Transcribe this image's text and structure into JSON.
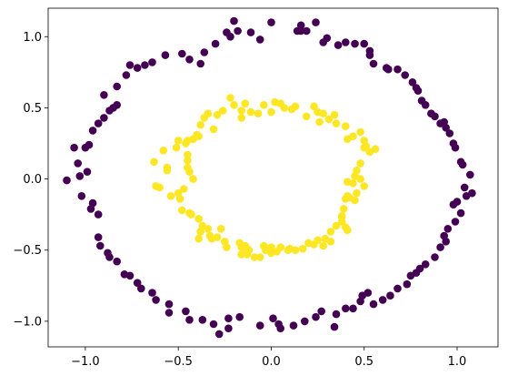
{
  "chart_data": {
    "type": "scatter",
    "title": "",
    "xlabel": "",
    "ylabel": "",
    "xlim": [
      -1.2,
      1.22
    ],
    "ylim": [
      -1.18,
      1.2
    ],
    "grid": false,
    "legend": "none",
    "colors": {
      "outer": "#440154",
      "inner": "#fde725"
    },
    "x_ticks": [
      {
        "value": -1.0,
        "label": "−1.0"
      },
      {
        "value": -0.5,
        "label": "−0.5"
      },
      {
        "value": 0.0,
        "label": "0.0"
      },
      {
        "value": 0.5,
        "label": "0.5"
      },
      {
        "value": 1.0,
        "label": "1.0"
      }
    ],
    "y_ticks": [
      {
        "value": -1.0,
        "label": "−1.0"
      },
      {
        "value": -0.5,
        "label": "−0.5"
      },
      {
        "value": 0.0,
        "label": "0.0"
      },
      {
        "value": 0.5,
        "label": "0.5"
      },
      {
        "value": 1.0,
        "label": "1.0"
      }
    ],
    "series": [
      {
        "class": "outer",
        "points": [
          [
            -1.1,
            -0.01
          ],
          [
            -1.06,
            0.22
          ],
          [
            -1.04,
            0.11
          ],
          [
            -1.03,
            0.02
          ],
          [
            -0.99,
            0.05
          ],
          [
            -1.0,
            0.22
          ],
          [
            -0.98,
            0.24
          ],
          [
            -1.02,
            -0.12
          ],
          [
            -0.97,
            -0.21
          ],
          [
            -0.96,
            -0.17
          ],
          [
            -0.93,
            -0.25
          ],
          [
            -0.96,
            0.34
          ],
          [
            -0.93,
            0.39
          ],
          [
            -0.9,
            0.43
          ],
          [
            -0.87,
            0.48
          ],
          [
            -0.85,
            0.5
          ],
          [
            -0.83,
            0.52
          ],
          [
            -0.9,
            0.59
          ],
          [
            -0.83,
            0.65
          ],
          [
            -0.78,
            0.73
          ],
          [
            -0.76,
            0.8
          ],
          [
            -0.72,
            0.78
          ],
          [
            -0.68,
            0.8
          ],
          [
            -0.64,
            0.82
          ],
          [
            -0.57,
            0.87
          ],
          [
            -0.48,
            0.88
          ],
          [
            -0.44,
            0.84
          ],
          [
            -0.38,
            0.81
          ],
          [
            -0.36,
            0.89
          ],
          [
            -0.3,
            0.95
          ],
          [
            -0.22,
            1.0
          ],
          [
            -0.24,
            1.03
          ],
          [
            -0.18,
            1.04
          ],
          [
            -0.2,
            1.11
          ],
          [
            -0.11,
            1.03
          ],
          [
            -0.06,
            0.98
          ],
          [
            -0.0,
            1.1
          ],
          [
            0.14,
            1.04
          ],
          [
            0.16,
            1.04
          ],
          [
            0.19,
            1.04
          ],
          [
            0.16,
            1.08
          ],
          [
            0.24,
            1.1
          ],
          [
            0.28,
            0.96
          ],
          [
            0.3,
            0.99
          ],
          [
            0.36,
            0.94
          ],
          [
            0.4,
            0.96
          ],
          [
            0.45,
            0.95
          ],
          [
            0.5,
            0.95
          ],
          [
            0.53,
            0.9
          ],
          [
            0.53,
            0.87
          ],
          [
            0.55,
            0.81
          ],
          [
            0.62,
            0.78
          ],
          [
            0.63,
            0.77
          ],
          [
            0.68,
            0.77
          ],
          [
            0.72,
            0.73
          ],
          [
            0.76,
            0.68
          ],
          [
            0.78,
            0.64
          ],
          [
            0.79,
            0.62
          ],
          [
            0.81,
            0.55
          ],
          [
            0.83,
            0.52
          ],
          [
            0.86,
            0.46
          ],
          [
            0.88,
            0.44
          ],
          [
            0.91,
            0.39
          ],
          [
            0.93,
            0.4
          ],
          [
            0.94,
            0.36
          ],
          [
            0.96,
            0.32
          ],
          [
            0.98,
            0.25
          ],
          [
            0.99,
            0.22
          ],
          [
            1.02,
            0.12
          ],
          [
            1.03,
            0.1
          ],
          [
            1.07,
            0.03
          ],
          [
            1.04,
            -0.06
          ],
          [
            1.05,
            -0.12
          ],
          [
            1.08,
            -0.1
          ],
          [
            1.0,
            -0.16
          ],
          [
            0.98,
            -0.18
          ],
          [
            1.02,
            -0.24
          ],
          [
            0.99,
            -0.3
          ],
          [
            0.95,
            -0.35
          ],
          [
            0.93,
            -0.4
          ],
          [
            0.94,
            -0.44
          ],
          [
            0.91,
            -0.48
          ],
          [
            0.88,
            -0.55
          ],
          [
            0.83,
            -0.6
          ],
          [
            0.8,
            -0.63
          ],
          [
            0.78,
            -0.66
          ],
          [
            0.75,
            -0.68
          ],
          [
            0.73,
            -0.74
          ],
          [
            0.68,
            -0.77
          ],
          [
            0.64,
            -0.82
          ],
          [
            0.6,
            -0.85
          ],
          [
            0.55,
            -0.88
          ],
          [
            0.52,
            -0.8
          ],
          [
            0.49,
            -0.82
          ],
          [
            0.48,
            -0.86
          ],
          [
            0.44,
            -0.91
          ],
          [
            0.4,
            -0.91
          ],
          [
            0.35,
            -0.95
          ],
          [
            0.34,
            -1.04
          ],
          [
            0.27,
            -0.93
          ],
          [
            0.24,
            -0.97
          ],
          [
            0.18,
            -1.0
          ],
          [
            0.12,
            -1.03
          ],
          [
            0.05,
            -1.05
          ],
          [
            0.04,
            -1.02
          ],
          [
            0.01,
            -0.98
          ],
          [
            -0.06,
            -1.03
          ],
          [
            -0.17,
            -0.97
          ],
          [
            -0.23,
            -0.98
          ],
          [
            -0.23,
            -1.05
          ],
          [
            -0.28,
            -1.09
          ],
          [
            -0.31,
            -1.02
          ],
          [
            -0.37,
            -0.99
          ],
          [
            -0.44,
            -0.99
          ],
          [
            -0.46,
            -0.93
          ],
          [
            -0.55,
            -0.88
          ],
          [
            -0.55,
            -0.94
          ],
          [
            -0.62,
            -0.85
          ],
          [
            -0.64,
            -0.8
          ],
          [
            -0.7,
            -0.77
          ],
          [
            -0.72,
            -0.73
          ],
          [
            -0.76,
            -0.68
          ],
          [
            -0.79,
            -0.67
          ],
          [
            -0.83,
            -0.58
          ],
          [
            -0.87,
            -0.55
          ],
          [
            -0.92,
            -0.47
          ],
          [
            -0.93,
            -0.41
          ],
          [
            -0.88,
            -0.52
          ]
        ]
      },
      {
        "class": "inner",
        "points": [
          [
            -0.22,
            0.57
          ],
          [
            -0.14,
            0.53
          ],
          [
            -0.11,
            0.47
          ],
          [
            -0.16,
            0.48
          ],
          [
            -0.2,
            0.52
          ],
          [
            -0.26,
            0.48
          ],
          [
            -0.29,
            0.45
          ],
          [
            -0.34,
            0.46
          ],
          [
            -0.36,
            0.43
          ],
          [
            -0.38,
            0.38
          ],
          [
            -0.4,
            0.31
          ],
          [
            -0.42,
            0.28
          ],
          [
            -0.46,
            0.25
          ],
          [
            -0.5,
            0.27
          ],
          [
            -0.51,
            0.22
          ],
          [
            -0.58,
            0.2
          ],
          [
            -0.63,
            0.12
          ],
          [
            -0.56,
            0.06
          ],
          [
            -0.56,
            0.08
          ],
          [
            -0.45,
            0.08
          ],
          [
            -0.45,
            0.17
          ],
          [
            -0.45,
            0.13
          ],
          [
            -0.44,
            0.05
          ],
          [
            -0.42,
            0.0
          ],
          [
            -0.47,
            -0.07
          ],
          [
            -0.5,
            -0.1
          ],
          [
            -0.54,
            -0.12
          ],
          [
            -0.62,
            -0.05
          ],
          [
            -0.6,
            -0.06
          ],
          [
            -0.49,
            -0.14
          ],
          [
            -0.48,
            -0.22
          ],
          [
            -0.44,
            -0.24
          ],
          [
            -0.43,
            -0.25
          ],
          [
            -0.39,
            -0.28
          ],
          [
            -0.37,
            -0.33
          ],
          [
            -0.34,
            -0.35
          ],
          [
            -0.33,
            -0.4
          ],
          [
            -0.32,
            -0.42
          ],
          [
            -0.29,
            -0.41
          ],
          [
            -0.27,
            -0.35
          ],
          [
            -0.17,
            -0.45
          ],
          [
            -0.16,
            -0.48
          ],
          [
            -0.13,
            -0.49
          ],
          [
            -0.16,
            -0.53
          ],
          [
            -0.13,
            -0.53
          ],
          [
            -0.09,
            -0.55
          ],
          [
            -0.06,
            -0.55
          ],
          [
            -0.03,
            -0.5
          ],
          [
            0.0,
            -0.48
          ],
          [
            0.05,
            -0.48
          ],
          [
            0.09,
            -0.5
          ],
          [
            0.1,
            -0.49
          ],
          [
            0.13,
            -0.5
          ],
          [
            0.2,
            -0.45
          ],
          [
            0.23,
            -0.46
          ],
          [
            0.25,
            -0.43
          ],
          [
            0.29,
            -0.42
          ],
          [
            0.32,
            -0.44
          ],
          [
            0.32,
            -0.37
          ],
          [
            0.35,
            -0.33
          ],
          [
            0.38,
            -0.3
          ],
          [
            0.38,
            -0.27
          ],
          [
            0.38,
            -0.26
          ],
          [
            0.39,
            -0.21
          ],
          [
            0.4,
            -0.14
          ],
          [
            0.41,
            -0.12
          ],
          [
            0.44,
            -0.03
          ],
          [
            0.45,
            0.02
          ],
          [
            0.46,
            0.06
          ],
          [
            0.48,
            0.11
          ],
          [
            0.53,
            0.19
          ],
          [
            0.56,
            0.21
          ],
          [
            0.51,
            0.23
          ],
          [
            0.5,
            0.27
          ],
          [
            0.44,
            0.3
          ],
          [
            0.41,
            0.28
          ],
          [
            0.4,
            0.37
          ],
          [
            0.35,
            0.39
          ],
          [
            0.31,
            0.42
          ],
          [
            0.28,
            0.46
          ],
          [
            0.25,
            0.47
          ],
          [
            0.23,
            0.51
          ],
          [
            0.13,
            0.51
          ],
          [
            0.07,
            0.5
          ],
          [
            0.05,
            0.53
          ],
          [
            0.02,
            0.54
          ],
          [
            -0.04,
            0.52
          ],
          [
            0.0,
            0.47
          ],
          [
            -0.07,
            0.46
          ],
          [
            0.11,
            0.49
          ],
          [
            0.48,
            0.33
          ],
          [
            0.5,
            0.22
          ],
          [
            0.48,
            0.0
          ],
          [
            0.46,
            -0.1
          ],
          [
            0.42,
            -0.13
          ],
          [
            0.41,
            -0.02
          ],
          [
            0.5,
            -0.05
          ],
          [
            0.45,
            -0.15
          ],
          [
            0.4,
            -0.34
          ],
          [
            0.41,
            -0.36
          ],
          [
            -0.39,
            0.3
          ],
          [
            -0.45,
            0.27
          ],
          [
            -0.31,
            0.35
          ],
          [
            -0.25,
            -0.44
          ],
          [
            -0.24,
            -0.48
          ],
          [
            -0.14,
            -0.47
          ],
          [
            -0.12,
            -0.5
          ],
          [
            -0.38,
            -0.37
          ],
          [
            -0.39,
            -0.42
          ],
          [
            0.28,
            -0.47
          ],
          [
            0.03,
            -0.51
          ],
          [
            0.0,
            -0.52
          ],
          [
            -0.04,
            -0.47
          ],
          [
            0.17,
            -0.49
          ],
          [
            -0.16,
            0.43
          ],
          [
            0.34,
            0.45
          ],
          [
            0.19,
            0.44
          ],
          [
            0.26,
            0.4
          ]
        ]
      }
    ]
  }
}
